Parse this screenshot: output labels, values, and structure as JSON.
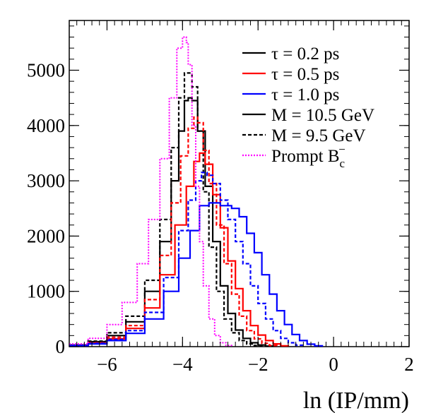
{
  "chart_data": {
    "type": "line",
    "xlabel": "ln (IP/mm)",
    "ylabel": "",
    "xlim": [
      -7,
      2
    ],
    "ylim": [
      0,
      5900
    ],
    "x_ticks": [
      -6,
      -4,
      -2,
      0,
      2
    ],
    "x_tick_labels": [
      "−6",
      "−4",
      "−2",
      "0",
      "2"
    ],
    "y_ticks": [
      0,
      1000,
      2000,
      3000,
      4000,
      5000
    ],
    "y_tick_labels": [
      "0",
      "1000",
      "2000",
      "3000",
      "4000",
      "5000"
    ],
    "grid": false,
    "legend_position": "top-right",
    "legend": [
      {
        "label": "τ = 0.2 ps",
        "color": "#000000",
        "style": "solid"
      },
      {
        "label": "τ = 0.5 ps",
        "color": "#ff0000",
        "style": "solid"
      },
      {
        "label": "τ = 1.0 ps",
        "color": "#0000ff",
        "style": "solid"
      },
      {
        "label": "M = 10.5 GeV",
        "color": "#000000",
        "style": "solid"
      },
      {
        "label": "M = 9.5 GeV",
        "color": "#000000",
        "style": "dashed"
      },
      {
        "label": "Prompt B",
        "sub": "c",
        "sup": "−",
        "color": "#ff00ff",
        "style": "dotted"
      }
    ],
    "series": [
      {
        "name": "tau 0.2 ps, M 10.5 GeV",
        "color": "#000000",
        "style": "solid",
        "width": 2.2,
        "x": [
          -7,
          -6.5,
          -6,
          -5.5,
          -5,
          -4.6,
          -4.3,
          -4.1,
          -3.95,
          -3.85,
          -3.75,
          -3.6,
          -3.4,
          -3.2,
          -3.0,
          -2.8,
          -2.6,
          -2.4,
          -2.2,
          -2.0,
          -1.8,
          -1.6
        ],
        "y": [
          30,
          90,
          200,
          450,
          1000,
          1900,
          3000,
          3900,
          4450,
          4500,
          4450,
          3900,
          2900,
          1900,
          1100,
          600,
          300,
          150,
          70,
          30,
          10,
          0
        ]
      },
      {
        "name": "tau 0.2 ps, M 9.5 GeV",
        "color": "#000000",
        "style": "dashed",
        "width": 2.2,
        "x": [
          -7,
          -6.5,
          -6,
          -5.5,
          -5,
          -4.6,
          -4.3,
          -4.1,
          -3.95,
          -3.85,
          -3.75,
          -3.6,
          -3.45,
          -3.3,
          -3.1,
          -2.9,
          -2.7,
          -2.5,
          -2.3,
          -2.1,
          -1.9
        ],
        "y": [
          30,
          100,
          250,
          550,
          1200,
          2300,
          3600,
          4500,
          4950,
          4950,
          4700,
          3900,
          2800,
          1800,
          1000,
          500,
          250,
          110,
          50,
          20,
          0
        ]
      },
      {
        "name": "tau 0.5 ps, M 10.5 GeV",
        "color": "#ff0000",
        "style": "solid",
        "width": 2.2,
        "x": [
          -7,
          -6.5,
          -6,
          -5.5,
          -5,
          -4.6,
          -4.2,
          -3.9,
          -3.7,
          -3.55,
          -3.4,
          -3.2,
          -3.0,
          -2.8,
          -2.6,
          -2.4,
          -2.2,
          -2.0,
          -1.8,
          -1.6,
          -1.4,
          -1.2
        ],
        "y": [
          20,
          60,
          140,
          330,
          700,
          1300,
          2200,
          2900,
          3350,
          3500,
          3300,
          2750,
          2150,
          1550,
          1050,
          650,
          380,
          210,
          110,
          50,
          15,
          0
        ]
      },
      {
        "name": "tau 0.5 ps, M 9.5 GeV",
        "color": "#ff0000",
        "style": "dashed",
        "width": 2.2,
        "x": [
          -7,
          -6.5,
          -6,
          -5.5,
          -5,
          -4.6,
          -4.3,
          -4.05,
          -3.85,
          -3.7,
          -3.6,
          -3.45,
          -3.3,
          -3.1,
          -2.9,
          -2.7,
          -2.5,
          -2.3,
          -2.1,
          -1.9,
          -1.7,
          -1.5
        ],
        "y": [
          20,
          70,
          170,
          380,
          850,
          1650,
          2600,
          3450,
          3950,
          4150,
          4050,
          3550,
          2950,
          2200,
          1500,
          950,
          550,
          290,
          140,
          60,
          20,
          0
        ]
      },
      {
        "name": "tau 1.0 ps, M 10.5 GeV",
        "color": "#0000ff",
        "style": "solid",
        "width": 2.2,
        "x": [
          -7,
          -6.5,
          -6,
          -5.5,
          -5,
          -4.5,
          -4.1,
          -3.8,
          -3.55,
          -3.3,
          -3.0,
          -2.7,
          -2.5,
          -2.3,
          -2.1,
          -1.9,
          -1.7,
          -1.5,
          -1.3,
          -1.1,
          -0.9,
          -0.7,
          -0.5,
          -0.3
        ],
        "y": [
          20,
          50,
          110,
          240,
          500,
          1000,
          1600,
          2100,
          2550,
          2600,
          2550,
          2500,
          2350,
          2050,
          1700,
          1300,
          950,
          650,
          400,
          220,
          110,
          45,
          15,
          0
        ]
      },
      {
        "name": "tau 1.0 ps, M 9.5 GeV",
        "color": "#0000ff",
        "style": "dashed",
        "width": 2.2,
        "x": [
          -7,
          -6.5,
          -6,
          -5.5,
          -5,
          -4.5,
          -4.1,
          -3.85,
          -3.65,
          -3.5,
          -3.35,
          -3.2,
          -3.0,
          -2.8,
          -2.6,
          -2.4,
          -2.2,
          -2.0,
          -1.8,
          -1.6,
          -1.4,
          -1.2,
          -1.0,
          -0.8
        ],
        "y": [
          20,
          60,
          130,
          290,
          620,
          1250,
          2100,
          2650,
          3000,
          3150,
          3100,
          2950,
          2650,
          2300,
          1900,
          1500,
          1100,
          780,
          500,
          290,
          150,
          70,
          25,
          0
        ]
      },
      {
        "name": "Prompt Bc-",
        "color": "#ff00ff",
        "style": "dotted",
        "width": 2.0,
        "x": [
          -7,
          -6.5,
          -6,
          -5.6,
          -5.2,
          -4.9,
          -4.6,
          -4.35,
          -4.15,
          -4.0,
          -3.9,
          -3.85,
          -3.75,
          -3.65,
          -3.55,
          -3.45,
          -3.3,
          -3.15,
          -3.0,
          -2.85,
          -2.7
        ],
        "y": [
          50,
          150,
          400,
          800,
          1500,
          2300,
          3400,
          4500,
          5400,
          5600,
          5500,
          5100,
          4000,
          2900,
          1900,
          1100,
          500,
          200,
          70,
          20,
          0
        ]
      }
    ]
  }
}
